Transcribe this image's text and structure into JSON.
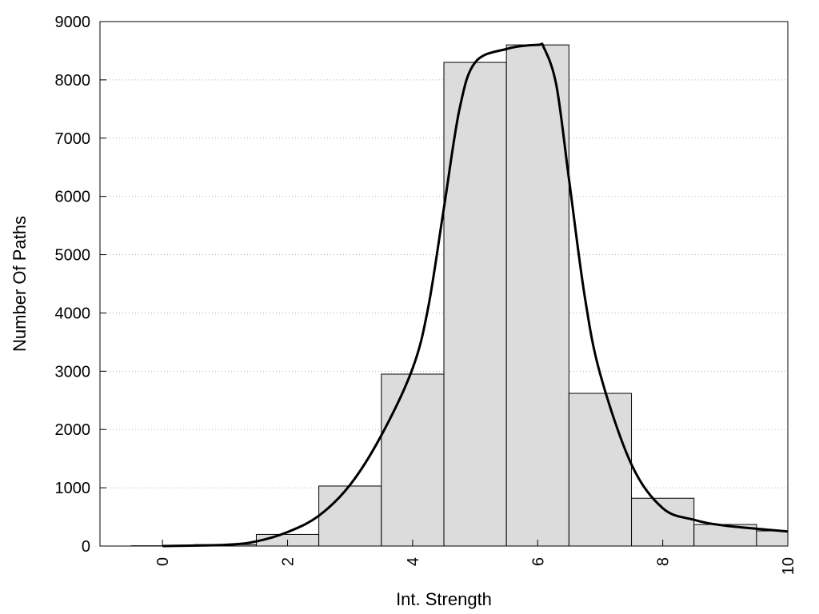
{
  "chart_data": {
    "type": "bar",
    "title": "",
    "xlabel": "Int. Strength",
    "ylabel": "Number Of Paths",
    "xlim": [
      -1,
      10
    ],
    "ylim": [
      0,
      9000
    ],
    "x_ticks": [
      0,
      2,
      4,
      6,
      8,
      10
    ],
    "y_ticks": [
      0,
      1000,
      2000,
      3000,
      4000,
      5000,
      6000,
      7000,
      8000,
      9000
    ],
    "grid": "horizontal-dotted",
    "bar_width": 1,
    "bars": [
      {
        "x": 0,
        "value": 5
      },
      {
        "x": 1,
        "value": 25
      },
      {
        "x": 2,
        "value": 200
      },
      {
        "x": 3,
        "value": 1030
      },
      {
        "x": 4,
        "value": 2950
      },
      {
        "x": 5,
        "value": 8300
      },
      {
        "x": 6,
        "value": 8600
      },
      {
        "x": 7,
        "value": 2620
      },
      {
        "x": 8,
        "value": 820
      },
      {
        "x": 9,
        "value": 370
      },
      {
        "x": 10,
        "value": 260
      }
    ],
    "curve": {
      "type": "line",
      "x": [
        0,
        1,
        1.5,
        2,
        2.5,
        3,
        3.5,
        4,
        4.25,
        4.5,
        4.75,
        5,
        5.5,
        6,
        6.1,
        6.3,
        6.5,
        6.75,
        7,
        7.5,
        8,
        8.5,
        9,
        10
      ],
      "y": [
        0,
        20,
        80,
        240,
        520,
        1050,
        1900,
        3050,
        4100,
        5800,
        7500,
        8300,
        8530,
        8600,
        8550,
        7900,
        6300,
        4300,
        2950,
        1400,
        650,
        450,
        350,
        250
      ]
    },
    "colors": {
      "bar_fill": "#dcdcdc",
      "bar_stroke": "#000000",
      "curve": "#000000",
      "grid": "#b0b0b0"
    }
  }
}
